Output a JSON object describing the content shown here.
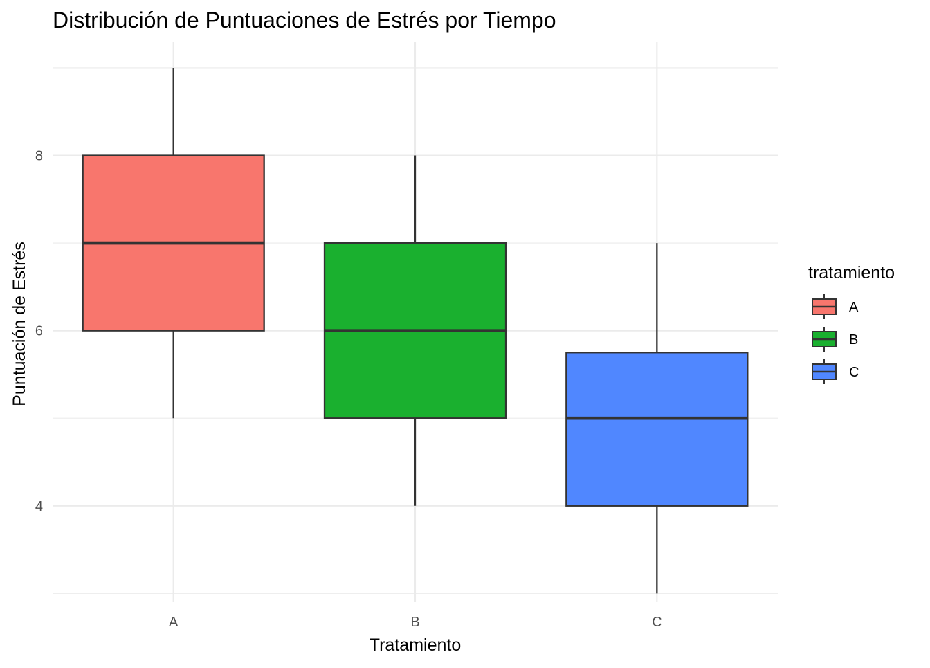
{
  "chart_data": {
    "type": "boxplot",
    "title": "Distribución de Puntuaciones de Estrés por Tiempo",
    "xlabel": "Tratamiento",
    "ylabel": "Puntuación de Estrés",
    "categories": [
      "A",
      "B",
      "C"
    ],
    "ylim": [
      2.9,
      9.3
    ],
    "yticks": [
      4,
      6,
      8
    ],
    "grid": true,
    "legend": {
      "title": "tratamiento",
      "position": "right",
      "entries": [
        "A",
        "B",
        "C"
      ]
    },
    "colors": {
      "A": "#f8766d",
      "B": "#1ab02f",
      "C": "#5087ff"
    },
    "boxes": [
      {
        "category": "A",
        "min": 5,
        "q1": 6,
        "median": 7,
        "q3": 8,
        "max": 9
      },
      {
        "category": "B",
        "min": 4,
        "q1": 5,
        "median": 6,
        "q3": 7,
        "max": 8
      },
      {
        "category": "C",
        "min": 3,
        "q1": 4,
        "median": 5,
        "q3": 5.75,
        "max": 7
      }
    ]
  }
}
